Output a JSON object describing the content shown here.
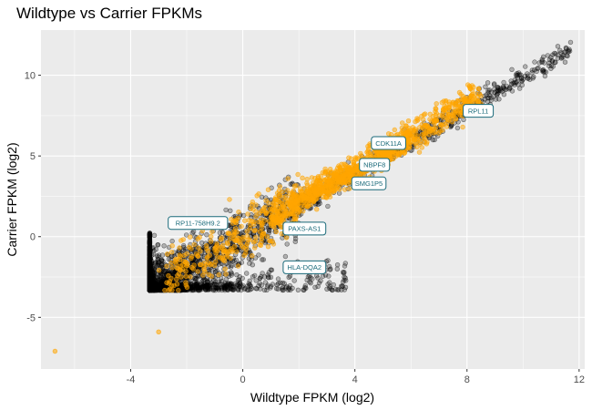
{
  "chart_data": {
    "type": "scatter",
    "title": "Wildtype vs Carrier FPKMs",
    "xlabel": "Wildtype FPKM (log2)",
    "ylabel": "Carrier FPKM (log2)",
    "xlim": [
      -7.2,
      12.2
    ],
    "ylim": [
      -8.2,
      12.8
    ],
    "x_ticks": [
      -4,
      0,
      4,
      8,
      12
    ],
    "y_ticks": [
      -5,
      0,
      5,
      10
    ],
    "grid": true,
    "background": "#ebebeb",
    "series": [
      {
        "color": "#000000",
        "opacity": 0.25,
        "description_points": "non-differential genes, dense along diagonal"
      },
      {
        "color": "#ffa500",
        "opacity": 0.5
      }
    ],
    "highlighted_outliers": [
      {
        "x": -6.7,
        "y": -7.1,
        "color": "#ffa500"
      },
      {
        "x": -3.0,
        "y": -5.9,
        "color": "#ffa500"
      }
    ],
    "labeled_genes": [
      {
        "label": "RPL11",
        "x": 8.4,
        "y": 7.8
      },
      {
        "label": "CDK11A",
        "x": 5.2,
        "y": 5.8
      },
      {
        "label": "NBPF8",
        "x": 4.7,
        "y": 4.45
      },
      {
        "label": "SMG1P5",
        "x": 4.5,
        "y": 3.3
      },
      {
        "label": "RP11-758H9.2",
        "x": -1.6,
        "y": 0.85
      },
      {
        "label": "PAXS-AS1",
        "x": 2.2,
        "y": 0.5
      },
      {
        "label": "HLA-DQA2",
        "x": 2.2,
        "y": -1.9
      }
    ]
  },
  "colors": {
    "panel": "#ebebeb",
    "grid_major": "#ffffff",
    "label_border": "#1a6a7a",
    "label_text": "#1a6a7a"
  }
}
